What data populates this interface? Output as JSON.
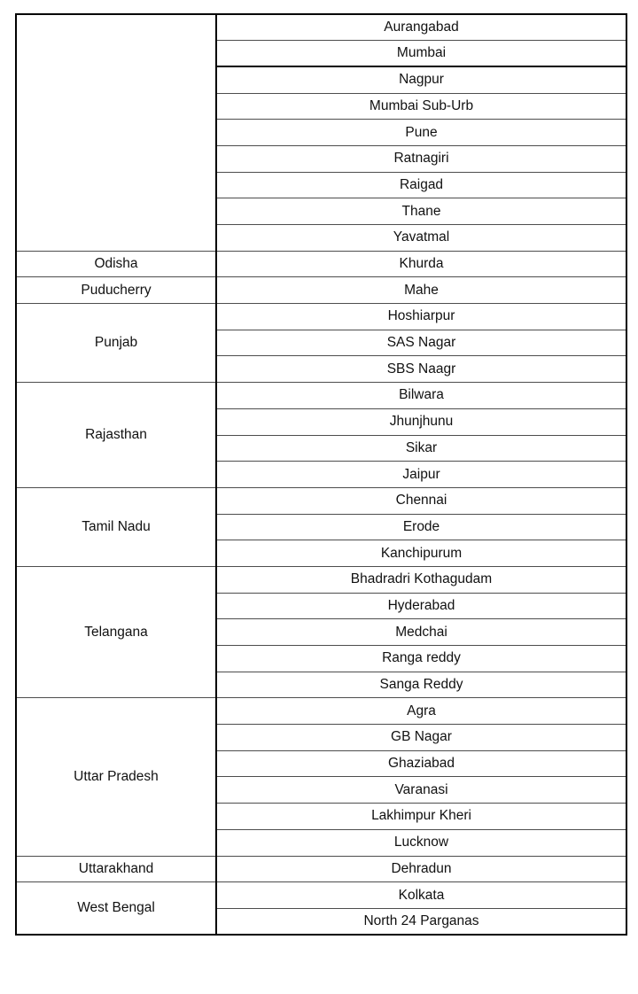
{
  "table": {
    "column_semantics": [
      "state",
      "district"
    ],
    "thick_divider_after_district": "Mumbai",
    "groups": [
      {
        "state": "",
        "districts": [
          "Aurangabad",
          "Mumbai",
          "Nagpur",
          "Mumbai Sub-Urb",
          "Pune",
          "Ratnagiri",
          "Raigad",
          "Thane",
          "Yavatmal"
        ]
      },
      {
        "state": "Odisha",
        "districts": [
          "Khurda"
        ]
      },
      {
        "state": "Puducherry",
        "districts": [
          "Mahe"
        ]
      },
      {
        "state": "Punjab",
        "districts": [
          "Hoshiarpur",
          "SAS Nagar",
          "SBS Naagr"
        ]
      },
      {
        "state": "Rajasthan",
        "districts": [
          "Bilwara",
          "Jhunjhunu",
          "Sikar",
          "Jaipur"
        ]
      },
      {
        "state": "Tamil Nadu",
        "districts": [
          "Chennai",
          "Erode",
          "Kanchipurum"
        ]
      },
      {
        "state": "Telangana",
        "districts": [
          "Bhadradri Kothagudam",
          "Hyderabad",
          "Medchai",
          "Ranga reddy",
          "Sanga Reddy"
        ]
      },
      {
        "state": "Uttar Pradesh",
        "districts": [
          "Agra",
          "GB Nagar",
          "Ghaziabad",
          "Varanasi",
          "Lakhimpur Kheri",
          "Lucknow"
        ]
      },
      {
        "state": "Uttarakhand",
        "districts": [
          "Dehradun"
        ]
      },
      {
        "state": "West Bengal",
        "districts": [
          "Kolkata",
          "North 24 Parganas"
        ]
      }
    ],
    "colors": {
      "background": "#ffffff",
      "text": "#111111",
      "inner_rule": "#4d4d4d",
      "outer_frame": "#000000"
    }
  }
}
